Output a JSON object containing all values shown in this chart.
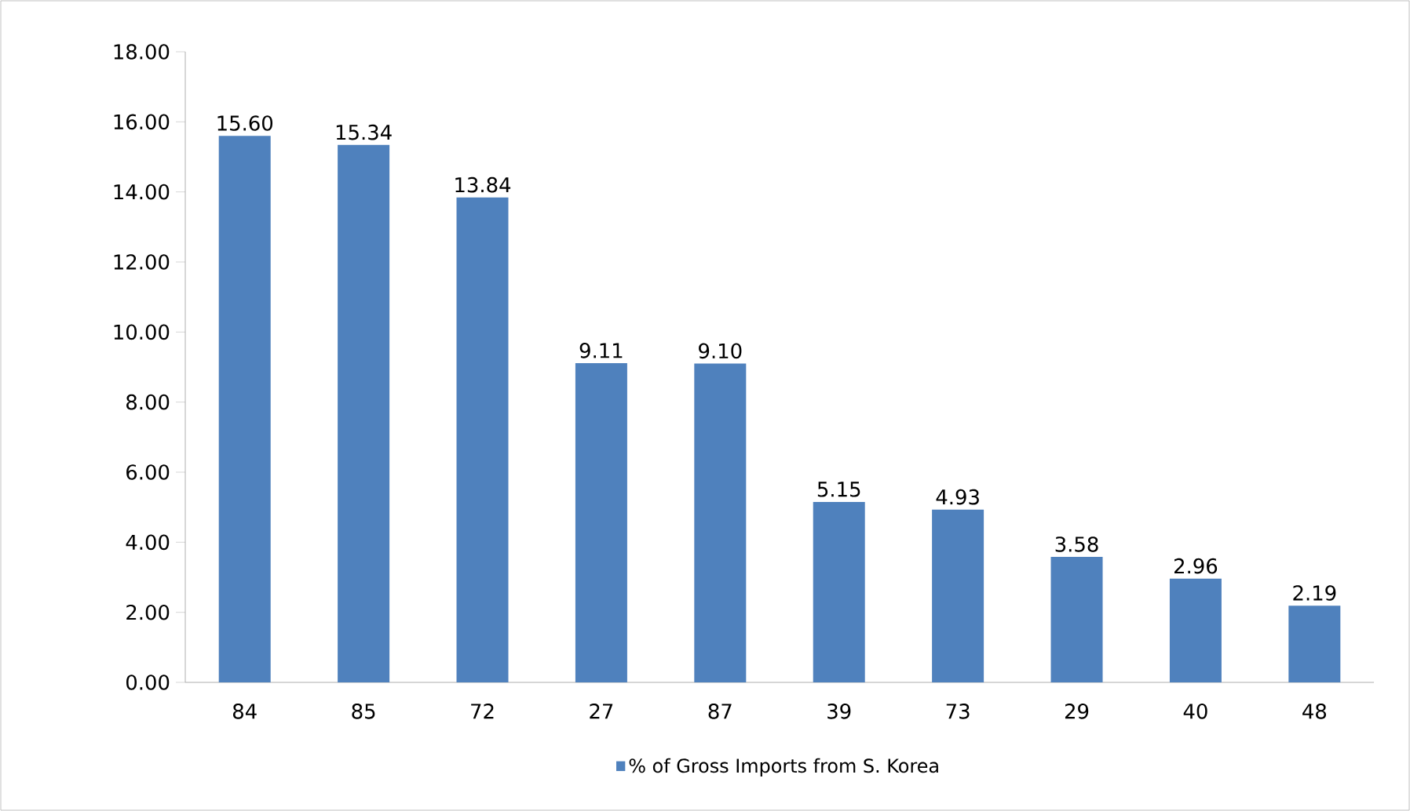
{
  "chart_data": {
    "type": "bar",
    "categories": [
      "84",
      "85",
      "72",
      "27",
      "87",
      "39",
      "73",
      "29",
      "40",
      "48"
    ],
    "series": [
      {
        "name": "% of Gross Imports from S. Korea",
        "color": "#4f81bd",
        "values": [
          15.6,
          15.34,
          13.84,
          9.11,
          9.1,
          5.15,
          4.93,
          3.58,
          2.96,
          2.19
        ],
        "value_labels": [
          "15.60",
          "15.34",
          "13.84",
          "9.11",
          "9.10",
          "5.15",
          "4.93",
          "3.58",
          "2.96",
          "2.19"
        ]
      }
    ],
    "ylim": [
      0,
      18
    ],
    "yticks": [
      {
        "value": 0,
        "label": "0.00"
      },
      {
        "value": 2,
        "label": "2.00"
      },
      {
        "value": 4,
        "label": "4.00"
      },
      {
        "value": 6,
        "label": "6.00"
      },
      {
        "value": 8,
        "label": "8.00"
      },
      {
        "value": 10,
        "label": "10.00"
      },
      {
        "value": 12,
        "label": "12.00"
      },
      {
        "value": 14,
        "label": "14.00"
      },
      {
        "value": 16,
        "label": "16.00"
      },
      {
        "value": 18,
        "label": "18.00"
      }
    ],
    "grid": false,
    "legend": "bottom"
  }
}
